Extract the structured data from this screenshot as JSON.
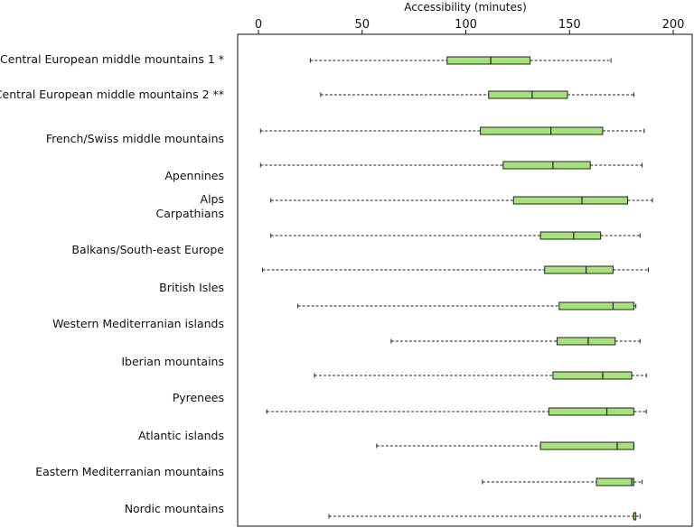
{
  "chart_data": {
    "type": "boxplot",
    "orientation": "horizontal",
    "xlabel": "Accessibility (minutes)",
    "x_axis_position": "top",
    "xlim": [
      -10,
      210
    ],
    "xticks": [
      0,
      50,
      100,
      150,
      200
    ],
    "grid": false,
    "legend": "none",
    "box_color": "#a6e07a",
    "box_stroke": "#222222",
    "categories": [
      {
        "label": "Central European middle mountains 1 *",
        "min": 25,
        "q1": 91,
        "median": 112,
        "q3": 131,
        "max": 170
      },
      {
        "label": "Central European middle mountains 2 **",
        "min": 30,
        "q1": 111,
        "median": 132,
        "q3": 149,
        "max": 181
      },
      {
        "label": "French/Swiss middle mountains",
        "min": 1,
        "q1": 107,
        "median": 141,
        "q3": 166,
        "max": 186
      },
      {
        "label": "Apennines",
        "min": 1,
        "q1": 118,
        "median": 142,
        "q3": 160,
        "max": 185
      },
      {
        "label": "Alps",
        "min": 6,
        "q1": 123,
        "median": 156,
        "q3": 178,
        "max": 190
      },
      {
        "label": "Carpathians",
        "min": 6,
        "q1": 136,
        "median": 152,
        "q3": 165,
        "max": 184
      },
      {
        "label": "Balkans/South-east Europe",
        "min": 2,
        "q1": 138,
        "median": 158,
        "q3": 171,
        "max": 188
      },
      {
        "label": "British Isles",
        "min": 19,
        "q1": 145,
        "median": 171,
        "q3": 181,
        "max": 182
      },
      {
        "label": "Western Mediterranian islands",
        "min": 64,
        "q1": 144,
        "median": 159,
        "q3": 172,
        "max": 184
      },
      {
        "label": "Iberian mountains",
        "min": 27,
        "q1": 142,
        "median": 166,
        "q3": 180,
        "max": 187
      },
      {
        "label": "Pyrenees",
        "min": 4,
        "q1": 140,
        "median": 168,
        "q3": 181,
        "max": 187
      },
      {
        "label": "Atlantic islands",
        "min": 57,
        "q1": 136,
        "median": 173,
        "q3": 181,
        "max": 181
      },
      {
        "label": "Eastern Mediterranian mountains",
        "min": 108,
        "q1": 163,
        "median": 180,
        "q3": 181,
        "max": 185
      },
      {
        "label": "Nordic mountains",
        "min": 34,
        "q1": 181,
        "median": 181,
        "q3": 182,
        "max": 184
      }
    ]
  }
}
